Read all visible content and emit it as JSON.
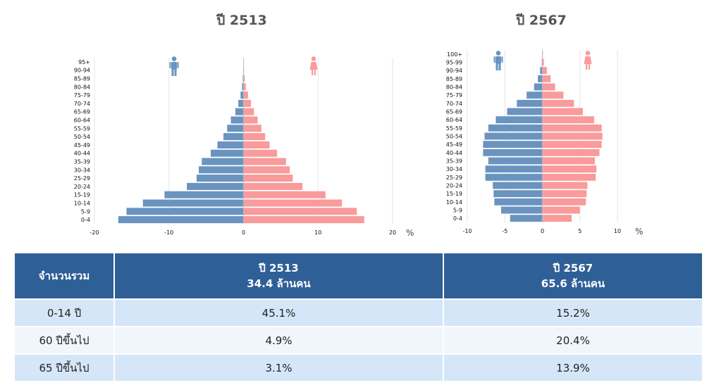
{
  "chart_data": [
    {
      "type": "bar",
      "orientation": "horizontal",
      "layout": "population-pyramid",
      "title": "ปี 2513",
      "unit": "%",
      "categories": [
        "0-4",
        "5-9",
        "10-14",
        "15-19",
        "20-24",
        "25-29",
        "30-34",
        "35-39",
        "40-44",
        "45-49",
        "50-54",
        "55-59",
        "60-64",
        "65-69",
        "70-74",
        "75-79",
        "80-84",
        "85-89",
        "90-94",
        "95+"
      ],
      "series": [
        {
          "gender": "male",
          "color": "#6a93c0",
          "values": [
            16.8,
            15.7,
            13.5,
            10.6,
            7.6,
            6.3,
            6.0,
            5.6,
            4.4,
            3.5,
            2.7,
            2.2,
            1.7,
            1.1,
            0.7,
            0.4,
            0.2,
            0.1,
            0.05,
            0.02
          ]
        },
        {
          "gender": "female",
          "color": "#f99a9b",
          "values": [
            16.2,
            15.2,
            13.2,
            11.0,
            7.9,
            6.6,
            6.2,
            5.7,
            4.5,
            3.5,
            2.9,
            2.4,
            1.9,
            1.4,
            1.0,
            0.6,
            0.3,
            0.15,
            0.07,
            0.03
          ]
        }
      ],
      "xlim": [
        -20,
        20
      ],
      "xticks": [
        -20,
        -10,
        0,
        10,
        20
      ]
    },
    {
      "type": "bar",
      "orientation": "horizontal",
      "layout": "population-pyramid",
      "title": "ปี 2567",
      "unit": "%",
      "categories": [
        "0-4",
        "5-9",
        "10-14",
        "15-19",
        "20-24",
        "25-29",
        "30-34",
        "35-39",
        "40-44",
        "45-49",
        "50-54",
        "55-59",
        "60-64",
        "65-69",
        "70-74",
        "75-79",
        "80-84",
        "85-89",
        "90-94",
        "95-99",
        "100+"
      ],
      "series": [
        {
          "gender": "male",
          "color": "#6a93c0",
          "values": [
            4.3,
            5.5,
            6.4,
            6.5,
            6.6,
            7.6,
            7.6,
            7.2,
            7.9,
            7.9,
            7.7,
            7.2,
            6.2,
            4.7,
            3.4,
            2.1,
            1.1,
            0.6,
            0.3,
            0.08,
            0.03
          ]
        },
        {
          "gender": "female",
          "color": "#f99a9b",
          "values": [
            3.9,
            5.0,
            5.8,
            5.9,
            6.0,
            7.1,
            7.2,
            7.0,
            7.6,
            7.9,
            8.0,
            7.9,
            6.9,
            5.4,
            4.2,
            2.8,
            1.7,
            1.1,
            0.6,
            0.2,
            0.07
          ]
        }
      ],
      "xlim": [
        -10,
        10
      ],
      "xticks": [
        -10,
        -5,
        0,
        5,
        10
      ]
    }
  ],
  "table": {
    "header": {
      "col0": "จำนวนรวม",
      "col1_line1": "ปี 2513",
      "col1_line2": "34.4 ล้านคน",
      "col2_line1": "ปี 2567",
      "col2_line2": "65.6 ล้านคน"
    },
    "rows": [
      {
        "label": "0-14 ปี",
        "v2513": "45.1%",
        "v2567": "15.2%"
      },
      {
        "label": "60 ปีขึ้นไป",
        "v2513": "4.9%",
        "v2567": "20.4%"
      },
      {
        "label": "65 ปีขึ้นไป",
        "v2513": "3.1%",
        "v2567": "13.9%"
      }
    ]
  },
  "icons": {
    "male": "male-person-icon",
    "female": "female-person-icon"
  }
}
